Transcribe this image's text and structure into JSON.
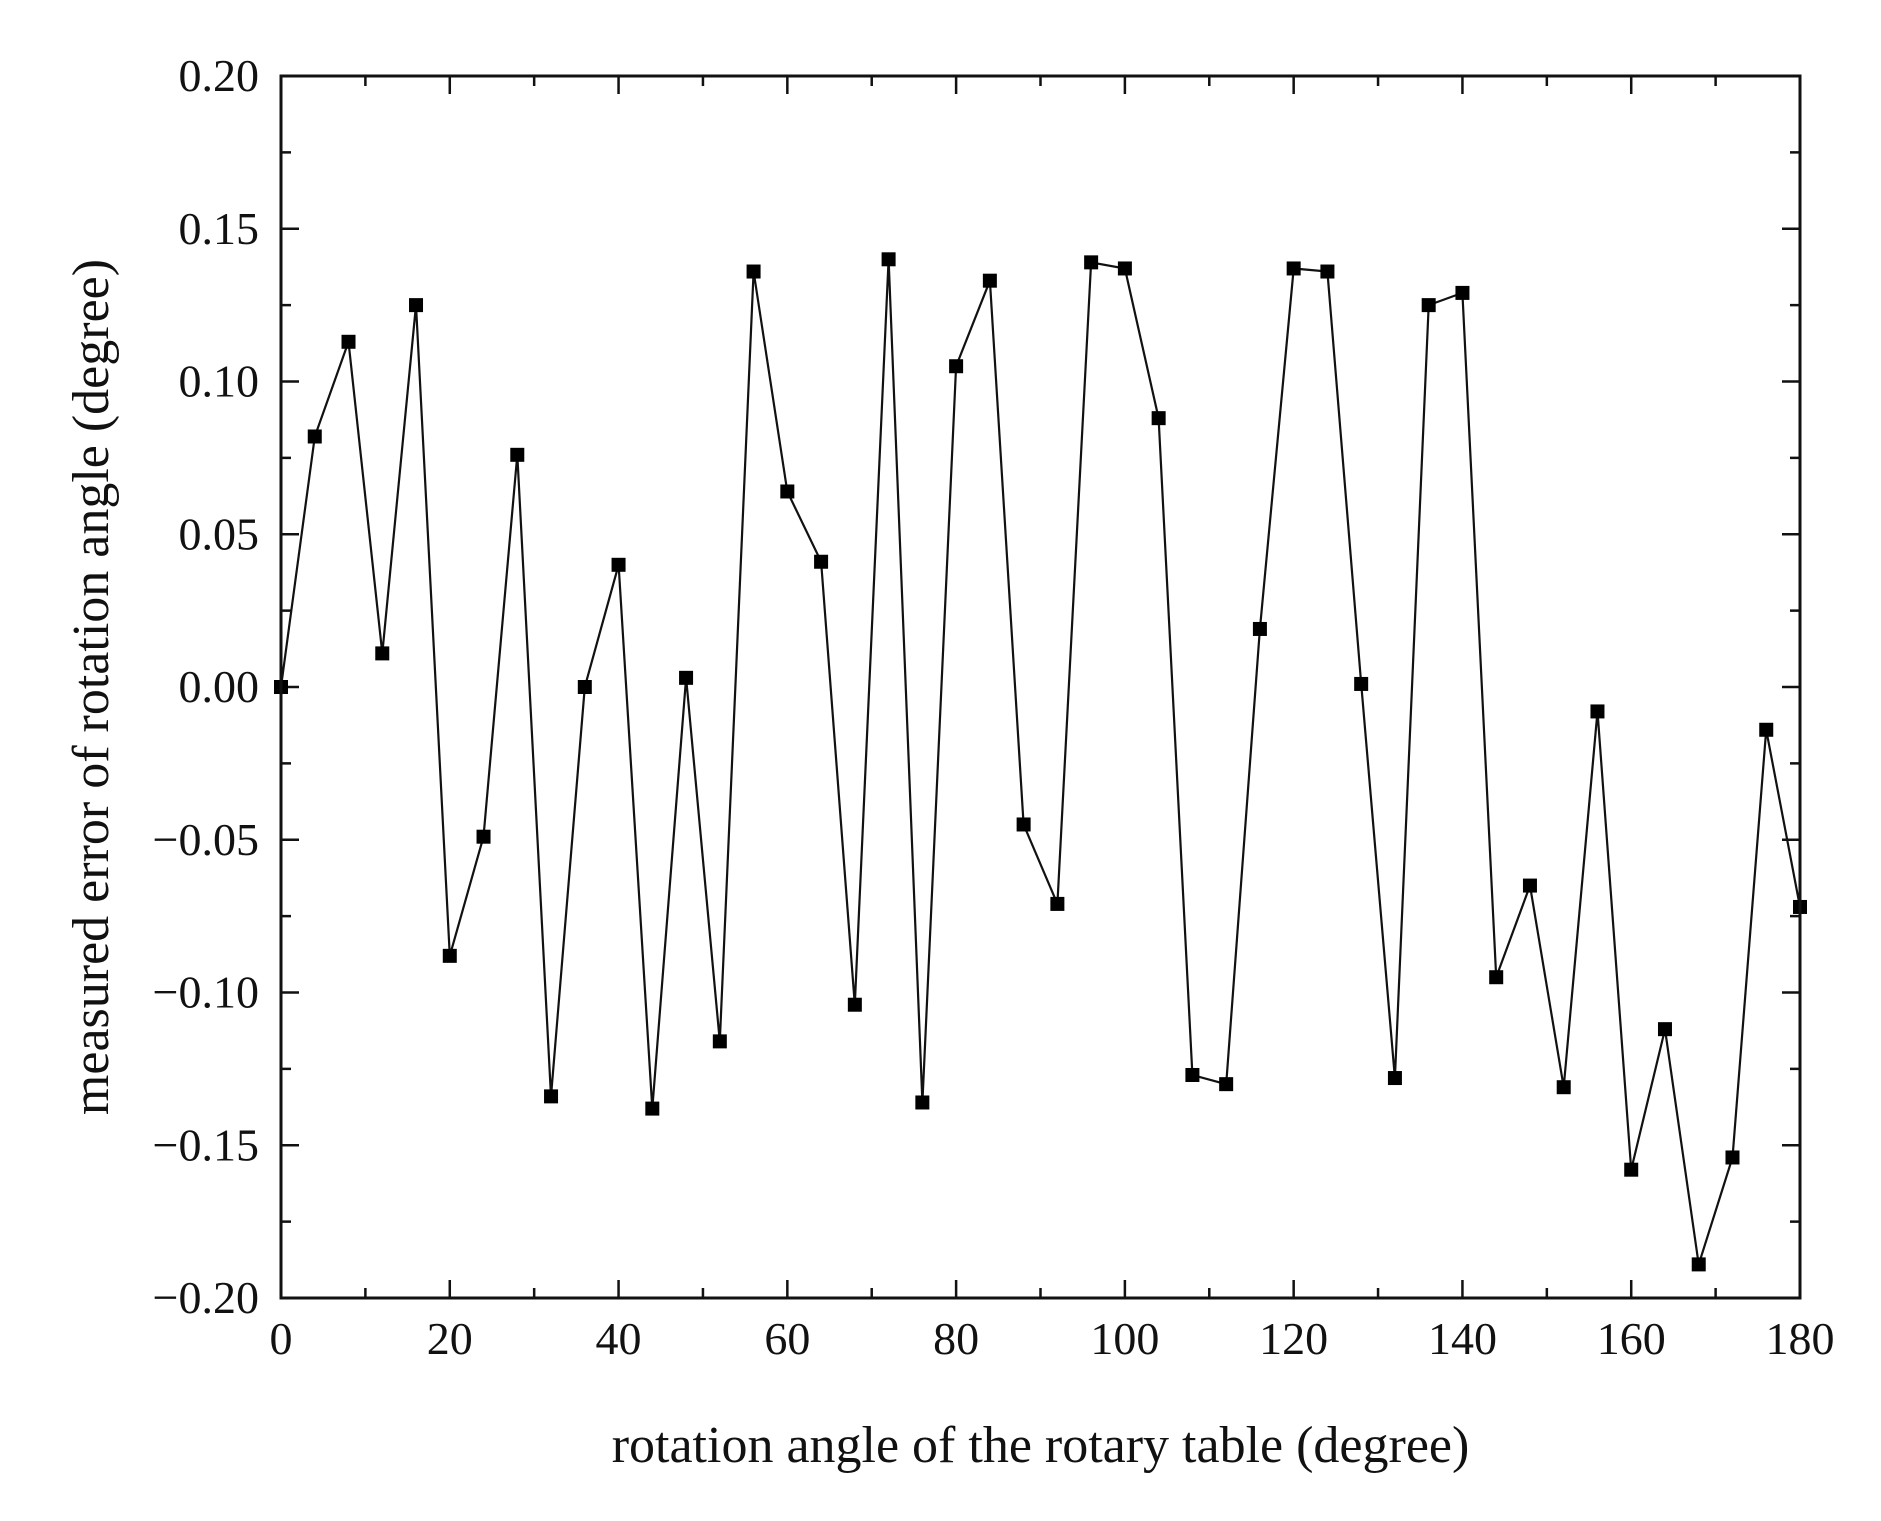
{
  "chart_data": {
    "type": "line",
    "title": "",
    "xlabel": "rotation angle of the rotary table (degree)",
    "ylabel": "measured error of rotation angle (degree)",
    "xlim": [
      0,
      180
    ],
    "ylim": [
      -0.2,
      0.2
    ],
    "x_ticks": [
      0,
      20,
      40,
      60,
      80,
      100,
      120,
      140,
      160,
      180
    ],
    "x_tick_labels": [
      "0",
      "20",
      "40",
      "60",
      "80",
      "100",
      "120",
      "140",
      "160",
      "180"
    ],
    "y_ticks": [
      0.2,
      0.15,
      0.1,
      0.05,
      0.0,
      -0.05,
      -0.1,
      -0.15,
      -0.2
    ],
    "y_tick_labels": [
      "0.20",
      "0.15",
      "0.10",
      "0.05",
      "0.00",
      "−0.05",
      "−0.10",
      "−0.15",
      "−0.20"
    ],
    "x_minor_step": 10,
    "y_minor_step": 0.025,
    "grid": false,
    "marker": "square",
    "series": [
      {
        "name": "measured error",
        "x": [
          0,
          4,
          8,
          12,
          16,
          20,
          24,
          28,
          32,
          36,
          40,
          44,
          48,
          52,
          56,
          60,
          64,
          68,
          72,
          76,
          80,
          84,
          88,
          92,
          96,
          100,
          104,
          108,
          112,
          116,
          120,
          124,
          128,
          132,
          136,
          140,
          144,
          148,
          152,
          156,
          160,
          164,
          168,
          172,
          176,
          180
        ],
        "values": [
          0.0,
          0.082,
          0.113,
          0.011,
          0.125,
          -0.088,
          -0.049,
          0.076,
          -0.134,
          0.0,
          0.04,
          -0.138,
          0.003,
          -0.116,
          0.136,
          0.064,
          0.041,
          -0.104,
          0.14,
          -0.136,
          0.105,
          0.133,
          -0.045,
          -0.071,
          0.139,
          0.137,
          0.088,
          -0.127,
          -0.13,
          0.019,
          0.137,
          0.136,
          0.001,
          -0.128,
          0.125,
          0.129,
          -0.095,
          -0.065,
          -0.131,
          -0.008,
          -0.158,
          -0.112,
          -0.189,
          -0.154,
          -0.014,
          -0.072
        ]
      }
    ]
  }
}
